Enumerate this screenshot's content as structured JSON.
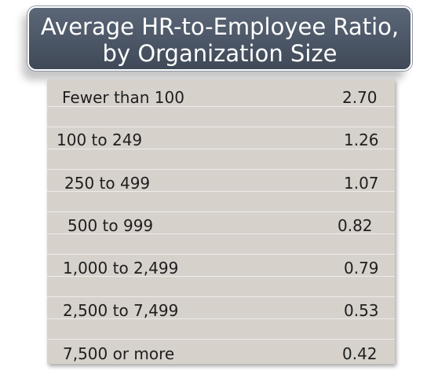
{
  "title": {
    "line1": "Average HR-to-Employee Ratio,",
    "line2": "by Organization Size"
  },
  "chart_data": {
    "type": "table",
    "title": "Average HR-to-Employee Ratio, by Organization Size",
    "rows": [
      {
        "label": "Fewer than 100",
        "value": "2.70"
      },
      {
        "label": "100 to 249",
        "value": "1.26"
      },
      {
        "label": "250 to 499",
        "value": "1.07"
      },
      {
        "label": "500 to 999",
        "value": "0.82"
      },
      {
        "label": "1,000 to 2,499",
        "value": "0.79"
      },
      {
        "label": "2,500 to 7,499",
        "value": "0.53"
      },
      {
        "label": "7,500 or more",
        "value": "0.42"
      }
    ]
  }
}
